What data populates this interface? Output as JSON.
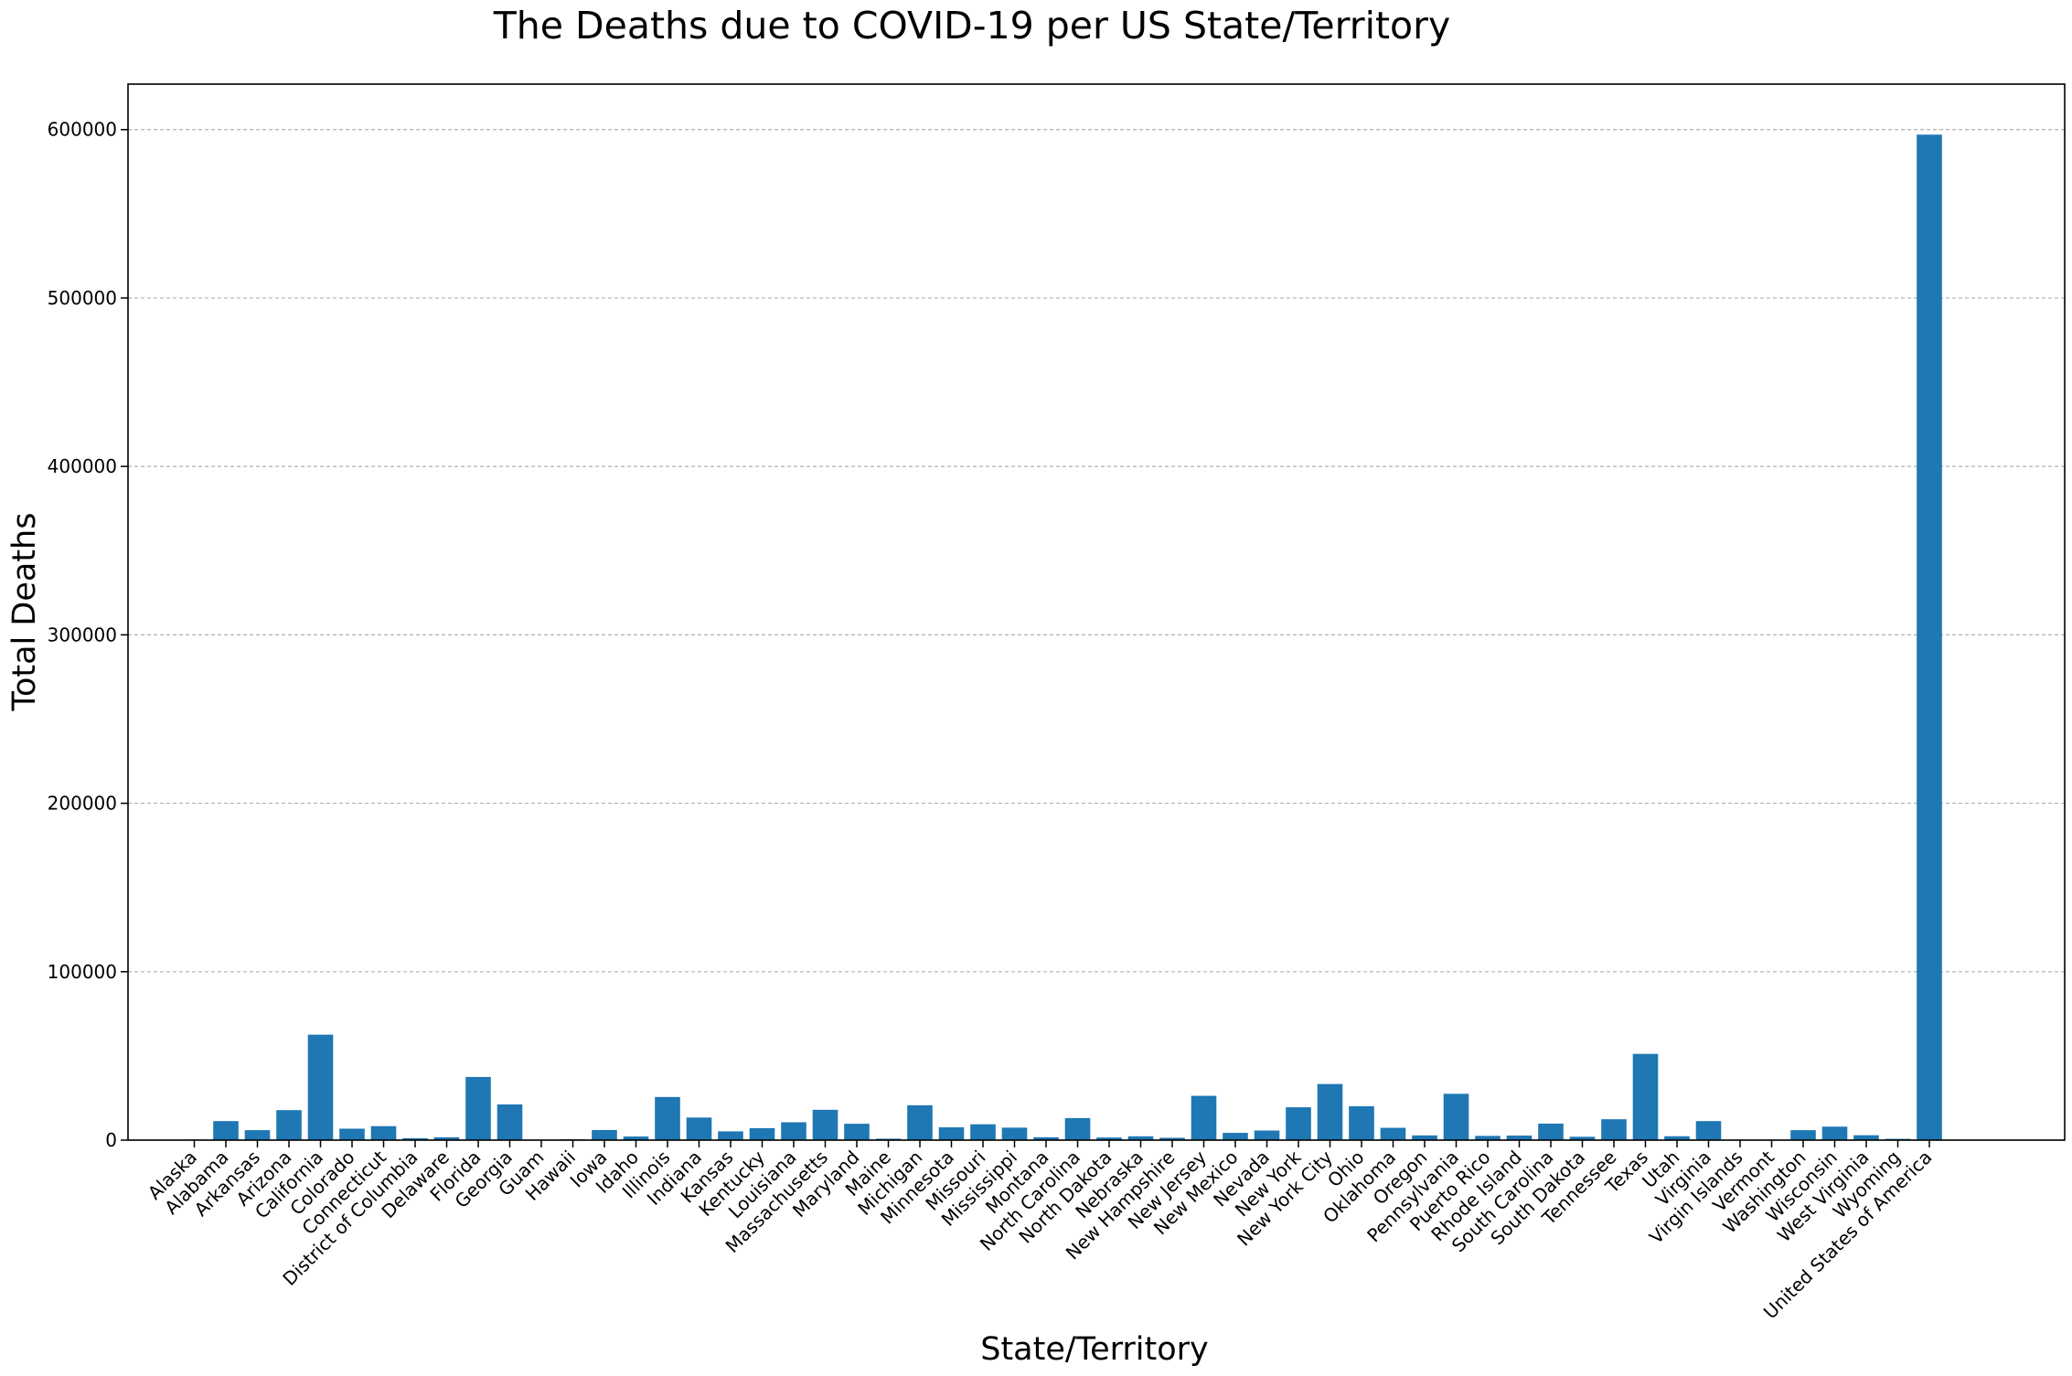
{
  "chart_data": {
    "type": "bar",
    "title": "The Deaths due to COVID-19 per US State/Territory",
    "xlabel": "State/Territory",
    "ylabel": "Total Deaths",
    "ylim": [
      0,
      627000
    ],
    "yticks": [
      0,
      100000,
      200000,
      300000,
      400000,
      500000,
      600000
    ],
    "grid": "y-dashed",
    "bar_color": "#1f77b4",
    "categories": [
      "Alaska",
      "Alabama",
      "Arkansas",
      "Arizona",
      "California",
      "Colorado",
      "Connecticut",
      "District of Columbia",
      "Delaware",
      "Florida",
      "Georgia",
      "Guam",
      "Hawaii",
      "Iowa",
      "Idaho",
      "Illinois",
      "Indiana",
      "Kansas",
      "Kentucky",
      "Louisiana",
      "Massachusetts",
      "Maryland",
      "Maine",
      "Michigan",
      "Minnesota",
      "Missouri",
      "Mississippi",
      "Montana",
      "North Carolina",
      "North Dakota",
      "Nebraska",
      "New Hampshire",
      "New Jersey",
      "New Mexico",
      "Nevada",
      "New York",
      "New York City",
      "Ohio",
      "Oklahoma",
      "Oregon",
      "Pennsylvania",
      "Puerto Rico",
      "Rhode Island",
      "South Carolina",
      "South Dakota",
      "Tennessee",
      "Texas",
      "Utah",
      "Virginia",
      "Virgin Islands",
      "Vermont",
      "Washington",
      "Wisconsin",
      "West Virginia",
      "Wyoming",
      "United States of America"
    ],
    "values": [
      370,
      11300,
      5900,
      17800,
      62600,
      6800,
      8300,
      1150,
      1700,
      37500,
      21200,
      140,
      510,
      6000,
      2150,
      25600,
      13400,
      5200,
      7100,
      10600,
      18000,
      9700,
      850,
      20700,
      7600,
      9400,
      7400,
      1700,
      13100,
      1550,
      2270,
      1380,
      26300,
      4300,
      5700,
      19500,
      33300,
      20100,
      7300,
      2800,
      27500,
      2500,
      2700,
      9800,
      2000,
      12400,
      51200,
      2300,
      11300,
      30,
      260,
      5900,
      8000,
      2900,
      760,
      597000
    ]
  }
}
